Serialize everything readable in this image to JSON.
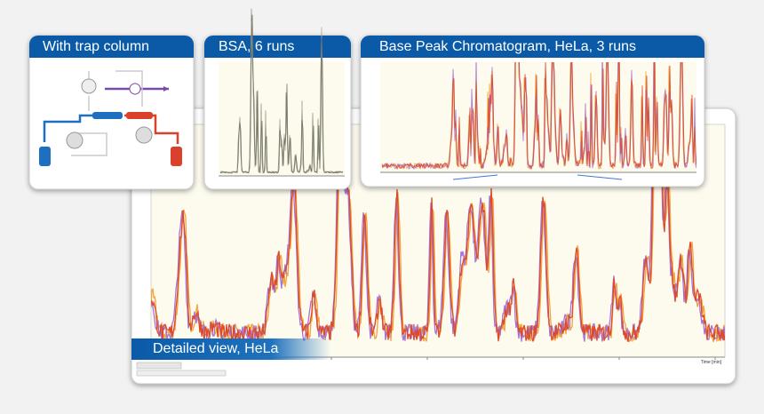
{
  "panels": [
    {
      "title": "With trap column"
    },
    {
      "title": "BSA, 6 runs"
    },
    {
      "title": "Base Peak Chromatogram, HeLa, 3 runs"
    }
  ],
  "detail": {
    "label": "Detailed view, HeLa",
    "x_axis_label": "Time [min]"
  }
}
